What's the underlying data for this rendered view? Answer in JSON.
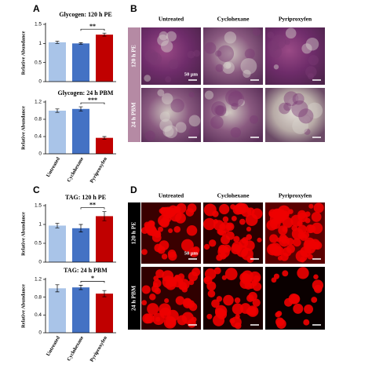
{
  "chart_data": [
    {
      "type": "bar",
      "title": "Glycogen: 120 h PE",
      "ylabel": "Relative Abundance",
      "values": [
        1.03,
        1.0,
        1.23
      ],
      "errors": [
        0.03,
        0.02,
        0.04
      ],
      "colors": [
        "#a9c4e8",
        "#4472c4",
        "#c00000"
      ],
      "ylim": [
        0,
        1.5
      ],
      "yticks": [
        0,
        0.5,
        1,
        1.5
      ],
      "significance": "**"
    },
    {
      "type": "bar",
      "title": "Glycogen: 24 h PBM",
      "ylabel": "Relative Abundance",
      "categories": [
        "Untreated",
        "Cyclohexane",
        "Pyriproxyfen"
      ],
      "values": [
        1.0,
        1.04,
        0.37
      ],
      "errors": [
        0.04,
        0.05,
        0.03
      ],
      "colors": [
        "#a9c4e8",
        "#4472c4",
        "#c00000"
      ],
      "ylim": [
        0,
        1.2
      ],
      "yticks": [
        0,
        0.4,
        0.8,
        1.2
      ],
      "significance": "***"
    },
    {
      "type": "bar",
      "title": "TAG: 120 h PE",
      "ylabel": "Relative Abundance",
      "values": [
        0.97,
        0.9,
        1.22
      ],
      "errors": [
        0.06,
        0.1,
        0.12
      ],
      "colors": [
        "#a9c4e8",
        "#4472c4",
        "#c00000"
      ],
      "ylim": [
        0,
        1.5
      ],
      "yticks": [
        0,
        0.5,
        1,
        1.5
      ],
      "significance": "**"
    },
    {
      "type": "bar",
      "title": "TAG: 24 h PBM",
      "ylabel": "Relative Abundance",
      "categories": [
        "Untreated",
        "Cyclohexane",
        "Pyriproxyfen"
      ],
      "values": [
        1.0,
        1.02,
        0.88
      ],
      "errors": [
        0.08,
        0.05,
        0.07
      ],
      "colors": [
        "#a9c4e8",
        "#4472c4",
        "#c00000"
      ],
      "ylim": [
        0,
        1.2
      ],
      "yticks": [
        0,
        0.4,
        0.8,
        1.2
      ],
      "significance": "*"
    }
  ],
  "panels": {
    "letters": [
      "A",
      "B",
      "C",
      "D"
    ],
    "image_panels": [
      {
        "columns": [
          "Untreated",
          "Cyclohexane",
          "Pyriproxyfen"
        ],
        "rows": [
          "120 h PE",
          "24 h PBM"
        ],
        "scale": "50 µm"
      },
      {
        "columns": [
          "Untreated",
          "Cyclohexane",
          "Pyriproxyfen"
        ],
        "rows": [
          "120 h PE",
          "24 h PBM"
        ],
        "scale": "50 µm"
      }
    ]
  }
}
